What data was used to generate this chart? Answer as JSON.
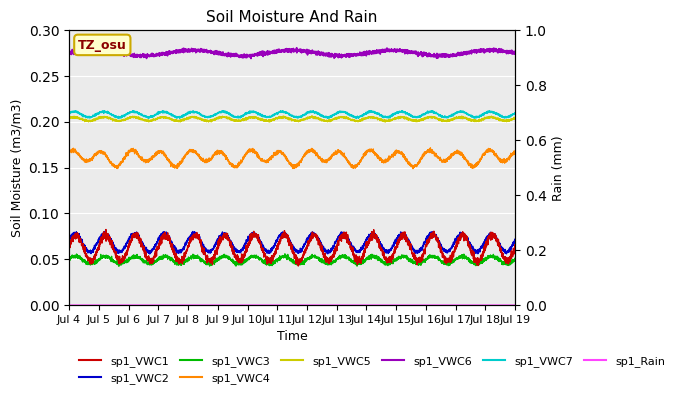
{
  "title": "Soil Moisture And Rain",
  "xlabel": "Time",
  "ylabel_left": "Soil Moisture (m3/m3)",
  "ylabel_right": "Rain (mm)",
  "ylim_left": [
    0.0,
    0.3
  ],
  "ylim_right": [
    0.0,
    1.0
  ],
  "xlim": [
    4.0,
    19.0
  ],
  "xtick_labels": [
    "Jul 4",
    "Jul 5",
    "Jul 6",
    "Jul 7",
    "Jul 8",
    "Jul 9",
    "Jul 10",
    "Jul 11",
    "Jul 12",
    "Jul 13",
    "Jul 14",
    "Jul 15",
    "Jul 16",
    "Jul 17",
    "Jul 18",
    "Jul 19"
  ],
  "xtick_positions": [
    4,
    5,
    6,
    7,
    8,
    9,
    10,
    11,
    12,
    13,
    14,
    15,
    16,
    17,
    18,
    19
  ],
  "annotation_text": "TZ_osu",
  "background_color": "#ebebeb",
  "series": {
    "sp1_VWC1": {
      "color": "#cc0000",
      "base": 0.062,
      "amp": 0.014,
      "freq": 1.0,
      "noise": 0.002
    },
    "sp1_VWC2": {
      "color": "#0000cc",
      "base": 0.068,
      "amp": 0.01,
      "freq": 1.0,
      "noise": 0.001
    },
    "sp1_VWC3": {
      "color": "#00bb00",
      "base": 0.049,
      "amp": 0.004,
      "freq": 1.0,
      "noise": 0.001
    },
    "sp1_VWC4": {
      "color": "#ff8800",
      "base": 0.161,
      "amp": 0.007,
      "freq": 1.0,
      "noise": 0.001
    },
    "sp1_VWC5": {
      "color": "#cccc00",
      "base": 0.203,
      "amp": 0.002,
      "freq": 1.0,
      "noise": 0.0005
    },
    "sp1_VWC6": {
      "color": "#9900bb",
      "base": 0.275,
      "amp": 0.003,
      "freq": 0.3,
      "noise": 0.001
    },
    "sp1_VWC7": {
      "color": "#00cccc",
      "base": 0.208,
      "amp": 0.003,
      "freq": 1.0,
      "noise": 0.0005
    },
    "sp1_Rain": {
      "color": "#ff44ff",
      "base": 0.0,
      "amp": 0.0,
      "freq": 0.0,
      "noise": 0.0
    }
  },
  "legend_order": [
    "sp1_VWC1",
    "sp1_VWC2",
    "sp1_VWC3",
    "sp1_VWC4",
    "sp1_VWC5",
    "sp1_VWC6",
    "sp1_VWC7",
    "sp1_Rain"
  ]
}
